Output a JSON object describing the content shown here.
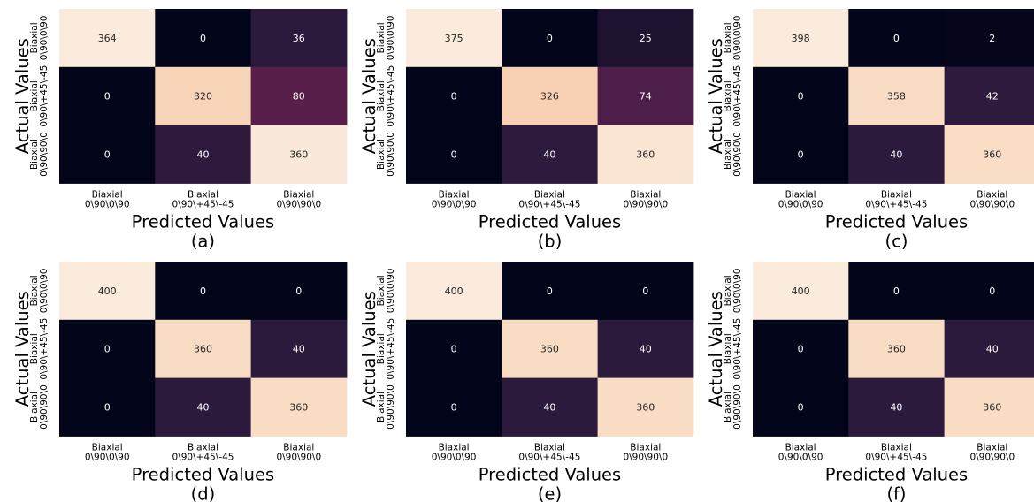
{
  "chart_data": [
    {
      "type": "heatmap",
      "panel_label": "(a)",
      "xlabel": "Predicted Values",
      "ylabel": "Actual Values",
      "x_categories": [
        [
          "Biaxial",
          "0\\90\\0\\90"
        ],
        [
          "Biaxial",
          "0\\90\\+45\\-45"
        ],
        [
          "Biaxial",
          "0\\90\\90\\0"
        ]
      ],
      "y_categories": [
        [
          "Biaxial",
          "0\\90\\0\\90"
        ],
        [
          "Biaxial",
          "0\\90\\+45\\-45"
        ],
        [
          "Biaxial",
          "0\\90\\90\\0"
        ]
      ],
      "values": [
        [
          364,
          0,
          36
        ],
        [
          0,
          320,
          80
        ],
        [
          0,
          40,
          360
        ]
      ],
      "value_range": [
        0,
        364
      ]
    },
    {
      "type": "heatmap",
      "panel_label": "(b)",
      "xlabel": "Predicted Values",
      "ylabel": "Actual Values",
      "x_categories": [
        [
          "Biaxial",
          "0\\90\\0\\90"
        ],
        [
          "Biaxial",
          "0\\90\\+45\\-45"
        ],
        [
          "Biaxial",
          "0\\90\\90\\0"
        ]
      ],
      "y_categories": [
        [
          "Biaxial",
          "0\\90\\0\\90"
        ],
        [
          "Biaxial",
          "0\\90\\+45\\-45"
        ],
        [
          "Biaxial",
          "0\\90\\90\\0"
        ]
      ],
      "values": [
        [
          375,
          0,
          25
        ],
        [
          0,
          326,
          74
        ],
        [
          0,
          40,
          360
        ]
      ],
      "value_range": [
        0,
        375
      ]
    },
    {
      "type": "heatmap",
      "panel_label": "(c)",
      "xlabel": "Predicted Values",
      "ylabel": "Actual Values",
      "x_categories": [
        [
          "Biaxial",
          "0\\90\\0\\90"
        ],
        [
          "Biaxial",
          "0\\90\\+45\\-45"
        ],
        [
          "Biaxial",
          "0\\90\\90\\0"
        ]
      ],
      "y_categories": [
        [
          "Biaxial",
          "0\\90\\0\\90"
        ],
        [
          "Biaxial",
          "0\\90\\+45\\-45"
        ],
        [
          "Biaxial",
          "0\\90\\90\\0"
        ]
      ],
      "values": [
        [
          398,
          0,
          2
        ],
        [
          0,
          358,
          42
        ],
        [
          0,
          40,
          360
        ]
      ],
      "value_range": [
        0,
        398
      ]
    },
    {
      "type": "heatmap",
      "panel_label": "(d)",
      "xlabel": "Predicted Values",
      "ylabel": "Actual Values",
      "x_categories": [
        [
          "Biaxial",
          "0\\90\\0\\90"
        ],
        [
          "Biaxial",
          "0\\90\\+45\\-45"
        ],
        [
          "Biaxial",
          "0\\90\\90\\0"
        ]
      ],
      "y_categories": [
        [
          "Biaxial",
          "0\\90\\0\\90"
        ],
        [
          "Biaxial",
          "0\\90\\+45\\-45"
        ],
        [
          "Biaxial",
          "0\\90\\90\\0"
        ]
      ],
      "values": [
        [
          400,
          0,
          0
        ],
        [
          0,
          360,
          40
        ],
        [
          0,
          40,
          360
        ]
      ],
      "value_range": [
        0,
        400
      ]
    },
    {
      "type": "heatmap",
      "panel_label": "(e)",
      "xlabel": "Predicted Values",
      "ylabel": "Actual Values",
      "x_categories": [
        [
          "Biaxial",
          "0\\90\\0\\90"
        ],
        [
          "Biaxial",
          "0\\90\\+45\\-45"
        ],
        [
          "Biaxial",
          "0\\90\\90\\0"
        ]
      ],
      "y_categories": [
        [
          "Biaxial",
          "0\\90\\0\\90"
        ],
        [
          "Biaxial",
          "0\\90\\+45\\-45"
        ],
        [
          "Biaxial",
          "0\\90\\90\\0"
        ]
      ],
      "values": [
        [
          400,
          0,
          0
        ],
        [
          0,
          360,
          40
        ],
        [
          0,
          40,
          360
        ]
      ],
      "value_range": [
        0,
        400
      ]
    },
    {
      "type": "heatmap",
      "panel_label": "(f)",
      "xlabel": "Predicted Values",
      "ylabel": "Actual Values",
      "x_categories": [
        [
          "Biaxial",
          "0\\90\\0\\90"
        ],
        [
          "Biaxial",
          "0\\90\\+45\\-45"
        ],
        [
          "Biaxial",
          "0\\90\\90\\0"
        ]
      ],
      "y_categories": [
        [
          "Biaxial",
          "0\\90\\0\\90"
        ],
        [
          "Biaxial",
          "0\\90\\+45\\-45"
        ],
        [
          "Biaxial",
          "0\\90\\90\\0"
        ]
      ],
      "values": [
        [
          400,
          0,
          0
        ],
        [
          0,
          360,
          40
        ],
        [
          0,
          40,
          360
        ]
      ],
      "value_range": [
        0,
        400
      ]
    }
  ],
  "colormap": {
    "name": "rocket",
    "stops": [
      "#03051a",
      "#2b1a3c",
      "#4f1e4a",
      "#7a2350",
      "#a5294c",
      "#cc3a3a",
      "#e6613a",
      "#f39a6e",
      "#f5b691",
      "#f9dcc4",
      "#faebdd"
    ]
  }
}
